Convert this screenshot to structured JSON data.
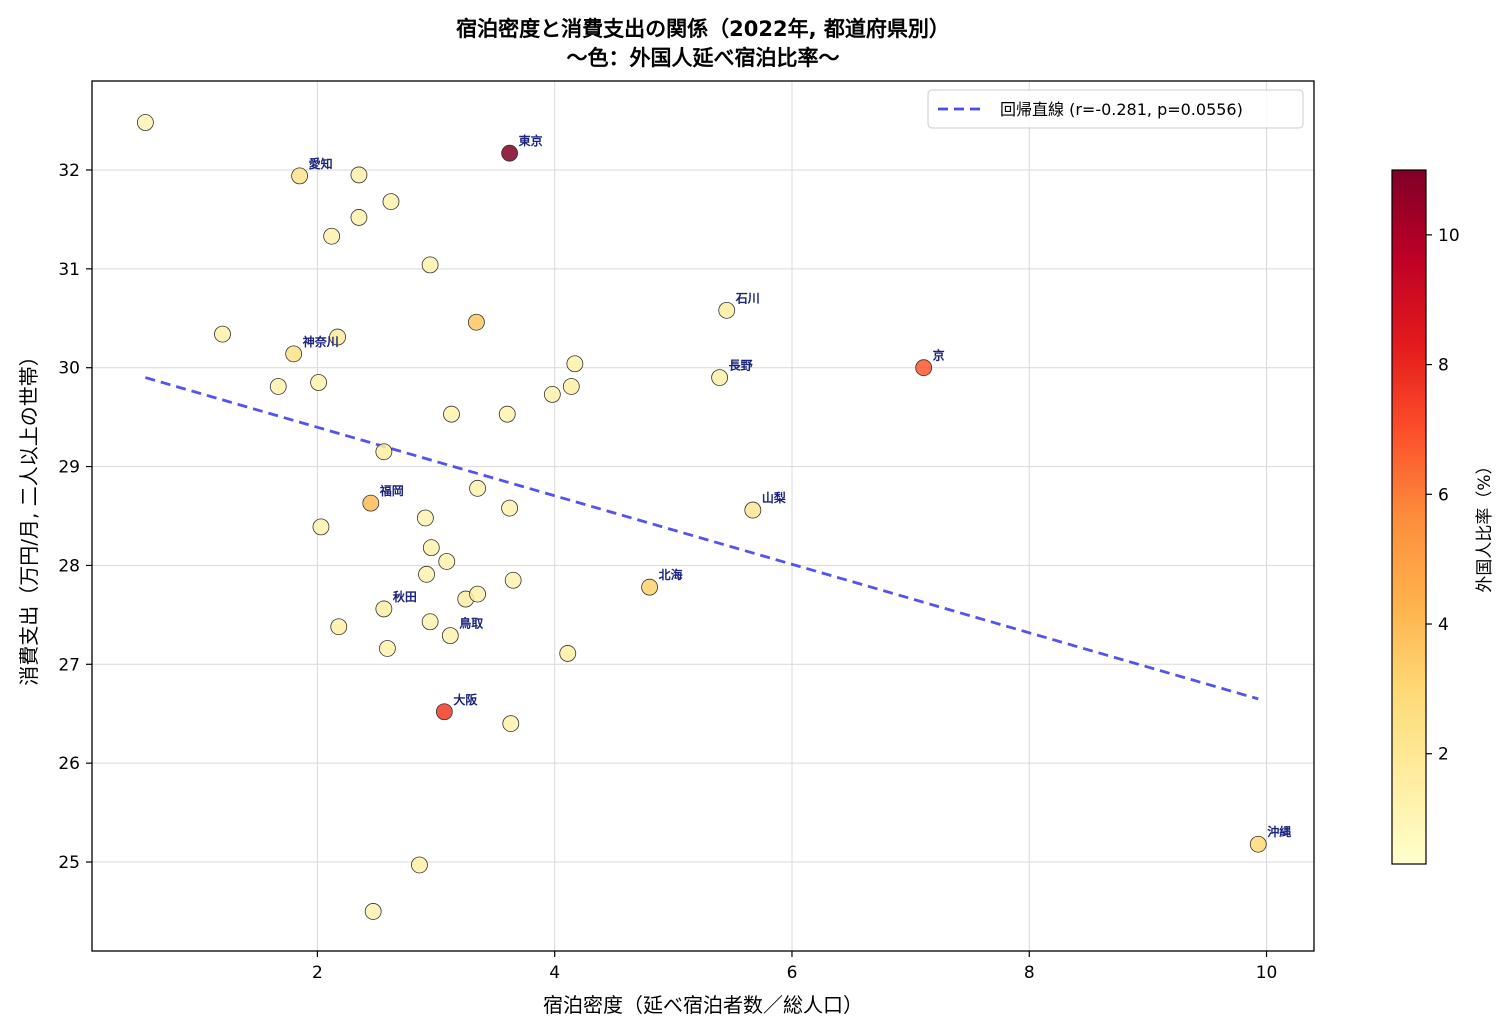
{
  "chart_data": {
    "type": "scatter",
    "title": "宿泊密度と消費支出の関係（2022年, 都道府県別）",
    "subtitle": "〜色：外国人延べ宿泊比率〜",
    "xlabel": "宿泊密度（延べ宿泊者数／総人口）",
    "ylabel": "消費支出（万円/月, 二人以上の世帯）",
    "xlim": [
      0.1,
      10.4
    ],
    "ylim": [
      24.1,
      32.9
    ],
    "xticks": [
      2,
      4,
      6,
      8,
      10
    ],
    "yticks": [
      25,
      26,
      27,
      28,
      29,
      30,
      31,
      32
    ],
    "grid": true,
    "legend": {
      "position": "top-right",
      "label": "回帰直線 (r=-0.281, p=0.0556)",
      "color": "#4a4af0"
    },
    "colorbar": {
      "label": "外国人比率（%）",
      "min": 0.3,
      "max": 11.0,
      "ticks": [
        2,
        4,
        6,
        8,
        10
      ],
      "colormap": "YlOrRd"
    },
    "regression": {
      "x": [
        0.55,
        9.93
      ],
      "y": [
        29.9,
        26.65
      ]
    },
    "points": [
      {
        "x": 0.55,
        "y": 32.48,
        "c": 1.1,
        "label": ""
      },
      {
        "x": 1.85,
        "y": 31.94,
        "c": 2.3,
        "label": "愛知"
      },
      {
        "x": 2.35,
        "y": 31.95,
        "c": 1.4,
        "label": ""
      },
      {
        "x": 2.62,
        "y": 31.68,
        "c": 1.3,
        "label": ""
      },
      {
        "x": 2.35,
        "y": 31.52,
        "c": 1.3,
        "label": ""
      },
      {
        "x": 2.12,
        "y": 31.33,
        "c": 1.3,
        "label": ""
      },
      {
        "x": 2.95,
        "y": 31.04,
        "c": 1.2,
        "label": ""
      },
      {
        "x": 3.62,
        "y": 32.17,
        "c": 11.0,
        "label": "東京"
      },
      {
        "x": 3.34,
        "y": 30.46,
        "c": 3.6,
        "label": ""
      },
      {
        "x": 1.2,
        "y": 30.34,
        "c": 1.4,
        "label": ""
      },
      {
        "x": 2.17,
        "y": 30.31,
        "c": 1.8,
        "label": ""
      },
      {
        "x": 1.8,
        "y": 30.14,
        "c": 2.4,
        "label": "神奈川"
      },
      {
        "x": 1.67,
        "y": 29.81,
        "c": 1.3,
        "label": ""
      },
      {
        "x": 2.01,
        "y": 29.85,
        "c": 1.3,
        "label": ""
      },
      {
        "x": 4.17,
        "y": 30.04,
        "c": 1.3,
        "label": ""
      },
      {
        "x": 3.98,
        "y": 29.73,
        "c": 1.3,
        "label": ""
      },
      {
        "x": 4.14,
        "y": 29.81,
        "c": 1.5,
        "label": ""
      },
      {
        "x": 3.13,
        "y": 29.53,
        "c": 1.2,
        "label": ""
      },
      {
        "x": 3.6,
        "y": 29.53,
        "c": 1.2,
        "label": ""
      },
      {
        "x": 5.45,
        "y": 30.58,
        "c": 1.5,
        "label": "石川"
      },
      {
        "x": 5.39,
        "y": 29.9,
        "c": 1.4,
        "label": "長野"
      },
      {
        "x": 7.11,
        "y": 30.0,
        "c": 6.8,
        "label": "京"
      },
      {
        "x": 2.56,
        "y": 29.15,
        "c": 1.6,
        "label": ""
      },
      {
        "x": 3.35,
        "y": 28.78,
        "c": 1.3,
        "label": ""
      },
      {
        "x": 2.45,
        "y": 28.63,
        "c": 4.0,
        "label": "福岡"
      },
      {
        "x": 3.62,
        "y": 28.58,
        "c": 1.2,
        "label": ""
      },
      {
        "x": 5.67,
        "y": 28.56,
        "c": 2.0,
        "label": "山梨"
      },
      {
        "x": 2.03,
        "y": 28.39,
        "c": 1.2,
        "label": ""
      },
      {
        "x": 2.91,
        "y": 28.48,
        "c": 1.2,
        "label": ""
      },
      {
        "x": 2.96,
        "y": 28.18,
        "c": 1.3,
        "label": ""
      },
      {
        "x": 3.09,
        "y": 28.04,
        "c": 1.3,
        "label": ""
      },
      {
        "x": 2.92,
        "y": 27.91,
        "c": 1.2,
        "label": ""
      },
      {
        "x": 3.65,
        "y": 27.85,
        "c": 1.2,
        "label": ""
      },
      {
        "x": 4.8,
        "y": 27.78,
        "c": 3.2,
        "label": "北海"
      },
      {
        "x": 3.25,
        "y": 27.66,
        "c": 1.5,
        "label": ""
      },
      {
        "x": 3.35,
        "y": 27.71,
        "c": 1.4,
        "label": ""
      },
      {
        "x": 2.56,
        "y": 27.56,
        "c": 1.5,
        "label": "秋田"
      },
      {
        "x": 2.95,
        "y": 27.43,
        "c": 1.2,
        "label": ""
      },
      {
        "x": 2.18,
        "y": 27.38,
        "c": 1.4,
        "label": ""
      },
      {
        "x": 3.12,
        "y": 27.29,
        "c": 1.3,
        "label": "鳥取"
      },
      {
        "x": 2.59,
        "y": 27.16,
        "c": 1.3,
        "label": ""
      },
      {
        "x": 4.11,
        "y": 27.11,
        "c": 1.5,
        "label": ""
      },
      {
        "x": 3.07,
        "y": 26.52,
        "c": 7.5,
        "label": "大阪"
      },
      {
        "x": 3.63,
        "y": 26.4,
        "c": 1.3,
        "label": ""
      },
      {
        "x": 9.93,
        "y": 25.18,
        "c": 2.9,
        "label": "沖縄"
      },
      {
        "x": 2.86,
        "y": 24.97,
        "c": 1.4,
        "label": ""
      },
      {
        "x": 2.47,
        "y": 24.5,
        "c": 1.2,
        "label": ""
      }
    ]
  }
}
